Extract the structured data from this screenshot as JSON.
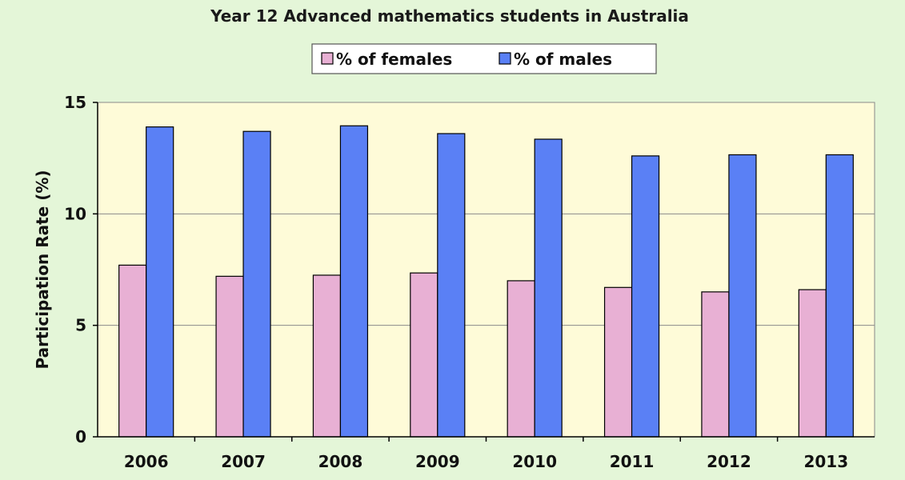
{
  "chart_data": {
    "type": "bar",
    "title": "Year 12 Advanced mathematics students in Australia",
    "xlabel": "",
    "ylabel": "Participation Rate (%)",
    "ylim": [
      0,
      15
    ],
    "yticks": [
      0,
      5,
      10,
      15
    ],
    "grid": true,
    "legend_position": "top",
    "categories": [
      "2006",
      "2007",
      "2008",
      "2009",
      "2010",
      "2011",
      "2012",
      "2013"
    ],
    "series": [
      {
        "name": "% of females",
        "color": "#e8b0d4",
        "values": [
          7.7,
          7.2,
          7.25,
          7.35,
          7.0,
          6.7,
          6.5,
          6.6
        ]
      },
      {
        "name": "% of males",
        "color": "#5a80f5",
        "values": [
          13.9,
          13.7,
          13.95,
          13.6,
          13.35,
          12.6,
          12.65,
          12.65
        ]
      }
    ],
    "plot_background": "#fefbd8",
    "page_background": "#e4f6d8"
  }
}
